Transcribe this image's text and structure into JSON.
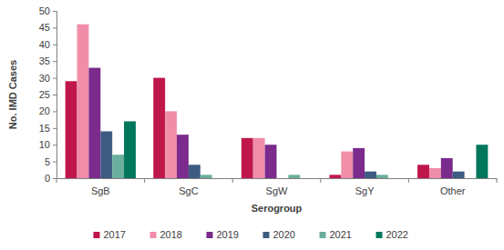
{
  "chart_data": {
    "type": "bar",
    "x_label": "Serogroup",
    "y_label": "No. IMD Cases",
    "categories": [
      "SgB",
      "SgC",
      "SgW",
      "SgY",
      "Other"
    ],
    "series": [
      {
        "name": "2017",
        "color": "#c0174b",
        "values": [
          29,
          30,
          12,
          1,
          4
        ]
      },
      {
        "name": "2018",
        "color": "#f08eaa",
        "values": [
          46,
          20,
          12,
          8,
          3
        ]
      },
      {
        "name": "2019",
        "color": "#7a2b8c",
        "values": [
          33,
          13,
          10,
          9,
          6
        ]
      },
      {
        "name": "2020",
        "color": "#3e5b82",
        "values": [
          14,
          4,
          0,
          2,
          2
        ]
      },
      {
        "name": "2021",
        "color": "#6aae9e",
        "values": [
          7,
          1,
          1,
          1,
          0
        ]
      },
      {
        "name": "2022",
        "color": "#00775c",
        "values": [
          17,
          0,
          0,
          0,
          10
        ]
      }
    ],
    "ylim": [
      0,
      50
    ],
    "yticks": [
      0,
      5,
      10,
      15,
      20,
      25,
      30,
      35,
      40,
      45,
      50
    ],
    "grid": false,
    "legend": "bottom"
  }
}
